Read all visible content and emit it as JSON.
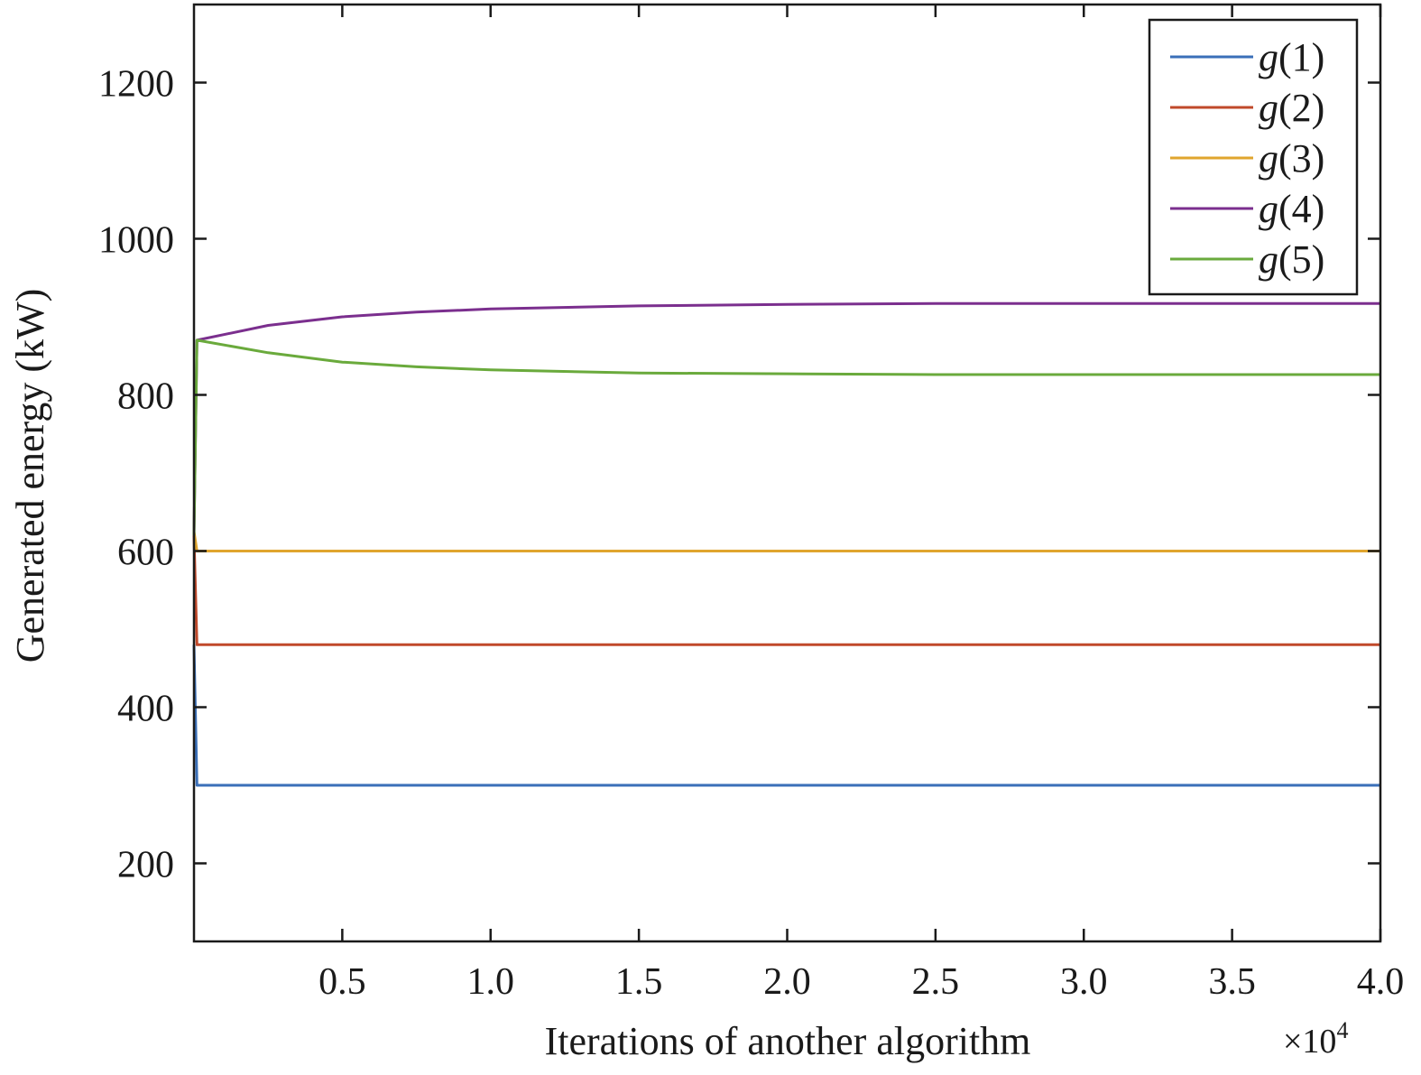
{
  "chart_data": {
    "type": "line",
    "title": "",
    "xlabel": "Iterations of another algorithm",
    "ylabel": "Generated energy (kW)",
    "x_multiplier_label": "×10",
    "x_multiplier_exponent": "4",
    "xlim": [
      0,
      4.0
    ],
    "ylim": [
      100,
      1300
    ],
    "x_ticks": [
      0.5,
      1.0,
      1.5,
      2.0,
      2.5,
      3.0,
      3.5,
      4.0
    ],
    "x_tick_labels": [
      "0.5",
      "1.0",
      "1.5",
      "2.0",
      "2.5",
      "3.0",
      "3.5",
      "4.0"
    ],
    "y_ticks": [
      200,
      400,
      600,
      800,
      1000,
      1200
    ],
    "y_tick_labels": [
      "200",
      "400",
      "600",
      "800",
      "1000",
      "1200"
    ],
    "grid": false,
    "legend_position": "top-right",
    "series": [
      {
        "name": "g(1)",
        "name_base": "g",
        "name_arg": "(1)",
        "color": "#3a6fb8",
        "x": [
          0,
          0.01,
          4.0
        ],
        "y": [
          480,
          300,
          300
        ]
      },
      {
        "name": "g(2)",
        "name_base": "g",
        "name_arg": "(2)",
        "color": "#c0492a",
        "x": [
          0,
          0.01,
          4.0
        ],
        "y": [
          620,
          480,
          480
        ]
      },
      {
        "name": "g(3)",
        "name_base": "g",
        "name_arg": "(3)",
        "color": "#e0a52e",
        "x": [
          0,
          0.01,
          4.0
        ],
        "y": [
          625,
          600,
          600
        ]
      },
      {
        "name": "g(4)",
        "name_base": "g",
        "name_arg": "(4)",
        "color": "#7b2f8e",
        "x": [
          0,
          0.01,
          0.25,
          0.5,
          0.75,
          1.0,
          1.5,
          2.0,
          2.5,
          3.0,
          3.5,
          4.0
        ],
        "y": [
          620,
          870,
          889,
          900,
          906,
          910,
          914,
          916,
          917,
          917,
          917,
          917
        ]
      },
      {
        "name": "g(5)",
        "name_base": "g",
        "name_arg": "(5)",
        "color": "#6aaa3c",
        "x": [
          0,
          0.01,
          0.25,
          0.5,
          0.75,
          1.0,
          1.5,
          2.0,
          2.5,
          3.0,
          3.5,
          4.0
        ],
        "y": [
          620,
          870,
          854,
          842,
          836,
          832,
          828,
          827,
          826,
          826,
          826,
          826
        ]
      }
    ]
  }
}
